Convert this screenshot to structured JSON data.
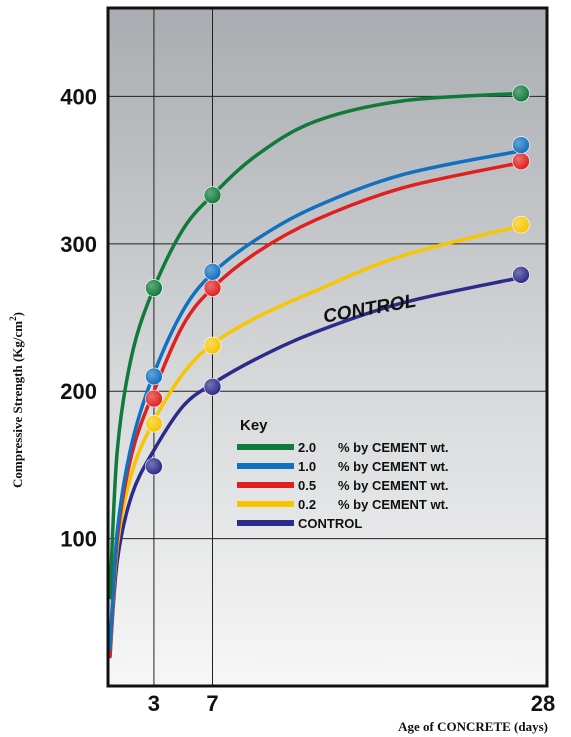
{
  "chart_data": {
    "type": "line",
    "title": "",
    "xlabel": "Age of CONCRETE (days)",
    "ylabel": "Compressive Strength (Kg/cm",
    "ylabel_sup": "2",
    "ylabel_close": ")",
    "xlim": [
      0,
      28
    ],
    "ylim": [
      0,
      460
    ],
    "x_ticks": [
      3,
      7,
      28
    ],
    "x_tick_labels": [
      "3",
      "7",
      "28"
    ],
    "y_ticks": [
      100,
      200,
      300,
      400
    ],
    "y_tick_labels": [
      "100",
      "200",
      "300",
      "400"
    ],
    "grid": true,
    "legend_placement": "center-right",
    "legend_title": "Key",
    "series": [
      {
        "key": "2.0",
        "label": "% by CEMENT wt.",
        "color": "#0f7a3a",
        "x": [
          3,
          7,
          28
        ],
        "y": [
          270,
          333,
          402
        ],
        "curve": [
          [
            0,
            60
          ],
          [
            0.5,
            160
          ],
          [
            1.5,
            225
          ],
          [
            3,
            270
          ],
          [
            5,
            310
          ],
          [
            7,
            333
          ],
          [
            10,
            360
          ],
          [
            14,
            383
          ],
          [
            20,
            397
          ],
          [
            28,
            402
          ]
        ]
      },
      {
        "key": "1.0",
        "label": "% by CEMENT wt.",
        "color": "#1170c0",
        "x": [
          3,
          7,
          28
        ],
        "y": [
          210,
          281,
          367
        ],
        "curve": [
          [
            0,
            25
          ],
          [
            0.5,
            105
          ],
          [
            1.5,
            165
          ],
          [
            3,
            212
          ],
          [
            5,
            255
          ],
          [
            7,
            280
          ],
          [
            10,
            303
          ],
          [
            14,
            325
          ],
          [
            20,
            347
          ],
          [
            28,
            363
          ]
        ]
      },
      {
        "key": "0.5",
        "label": "% by CEMENT wt.",
        "color": "#e02020",
        "x": [
          3,
          7,
          28
        ],
        "y": [
          195,
          270,
          356
        ],
        "curve": [
          [
            0,
            20
          ],
          [
            0.5,
            100
          ],
          [
            1.5,
            158
          ],
          [
            3,
            200
          ],
          [
            5,
            245
          ],
          [
            7,
            270
          ],
          [
            10,
            294
          ],
          [
            14,
            316
          ],
          [
            20,
            338
          ],
          [
            28,
            355
          ]
        ]
      },
      {
        "key": "0.2",
        "label": "% by CEMENT wt.",
        "color": "#f7c600",
        "x": [
          3,
          7,
          28
        ],
        "y": [
          178,
          231,
          313
        ],
        "curve": [
          [
            0,
            20
          ],
          [
            0.5,
            95
          ],
          [
            1.5,
            145
          ],
          [
            3,
            180
          ],
          [
            5,
            212
          ],
          [
            7,
            232
          ],
          [
            10,
            250
          ],
          [
            14,
            268
          ],
          [
            20,
            292
          ],
          [
            28,
            312
          ]
        ]
      },
      {
        "key": "",
        "label": "CONTROL",
        "color": "#2b2b8a",
        "x": [
          3,
          7,
          28
        ],
        "y": [
          149,
          203,
          279
        ],
        "curve": [
          [
            0,
            20
          ],
          [
            0.5,
            85
          ],
          [
            1.5,
            130
          ],
          [
            3,
            160
          ],
          [
            5,
            190
          ],
          [
            7,
            205
          ],
          [
            10,
            222
          ],
          [
            14,
            240
          ],
          [
            20,
            260
          ],
          [
            28,
            277
          ]
        ]
      }
    ],
    "annotations": [
      {
        "text": "CONTROL",
        "x": 17.8,
        "y": 252
      }
    ]
  }
}
